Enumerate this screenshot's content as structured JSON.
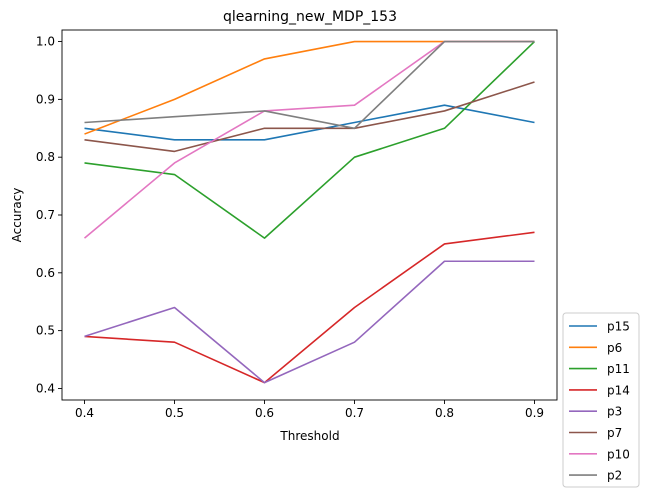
{
  "chart_data": {
    "type": "line",
    "title": "qlearning_new_MDP_153",
    "xlabel": "Threshold",
    "ylabel": "Accuracy",
    "x": [
      0.4,
      0.5,
      0.6,
      0.7,
      0.8,
      0.9
    ],
    "x_ticks": [
      "0.4",
      "0.5",
      "0.6",
      "0.7",
      "0.8",
      "0.9"
    ],
    "y_ticks": [
      "0.4",
      "0.5",
      "0.6",
      "0.7",
      "0.8",
      "0.9",
      "1.0"
    ],
    "xlim": [
      0.375,
      0.925
    ],
    "ylim": [
      0.38,
      1.02
    ],
    "grid": false,
    "legend_placement": "outside lower right",
    "series": [
      {
        "name": "p15",
        "color": "#1f77b4",
        "values": [
          0.85,
          0.83,
          0.83,
          0.86,
          0.89,
          0.86
        ]
      },
      {
        "name": "p6",
        "color": "#ff7f0e",
        "values": [
          0.84,
          0.9,
          0.97,
          1.0,
          1.0,
          1.0
        ]
      },
      {
        "name": "p11",
        "color": "#2ca02c",
        "values": [
          0.79,
          0.77,
          0.66,
          0.8,
          0.85,
          1.0
        ]
      },
      {
        "name": "p14",
        "color": "#d62728",
        "values": [
          0.49,
          0.48,
          0.41,
          0.54,
          0.65,
          0.67
        ]
      },
      {
        "name": "p3",
        "color": "#9467bd",
        "values": [
          0.49,
          0.54,
          0.41,
          0.48,
          0.62,
          0.62
        ]
      },
      {
        "name": "p7",
        "color": "#8c564b",
        "values": [
          0.83,
          0.81,
          0.85,
          0.85,
          0.88,
          0.93
        ]
      },
      {
        "name": "p10",
        "color": "#e377c2",
        "values": [
          0.66,
          0.79,
          0.88,
          0.89,
          1.0,
          1.0
        ]
      },
      {
        "name": "p2",
        "color": "#7f7f7f",
        "values": [
          0.86,
          0.87,
          0.88,
          0.85,
          1.0,
          1.0
        ]
      }
    ]
  }
}
